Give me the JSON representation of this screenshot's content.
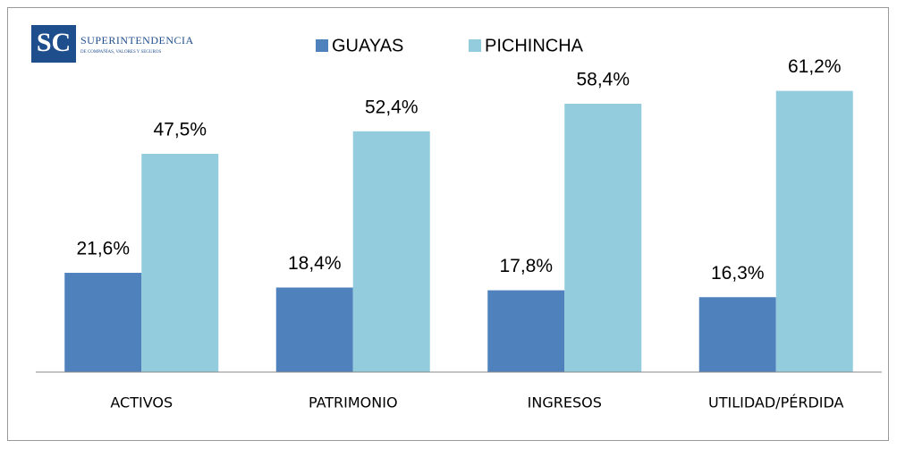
{
  "logo": {
    "name": "SUPERINTENDENCIA",
    "subtitle": "DE COMPAÑÍAS, VALORES Y SEGUROS"
  },
  "chart_data": {
    "type": "bar",
    "categories": [
      "ACTIVOS",
      "PATRIMONIO",
      "INGRESOS",
      "UTILIDAD/PÉRDIDA"
    ],
    "series": [
      {
        "name": "GUAYAS",
        "color": "#4f81bd",
        "values": [
          21.6,
          18.4,
          17.8,
          16.3
        ],
        "value_labels": [
          "21,6%",
          "18,4%",
          "17,8%",
          "16,3%"
        ]
      },
      {
        "name": "PICHINCHA",
        "color": "#93cddd",
        "values": [
          47.5,
          52.4,
          58.4,
          61.2
        ],
        "value_labels": [
          "47,5%",
          "52,4%",
          "58,4%",
          "61,2%"
        ]
      }
    ],
    "ylim": [
      0,
      70
    ],
    "grid": false,
    "legend": "top"
  }
}
